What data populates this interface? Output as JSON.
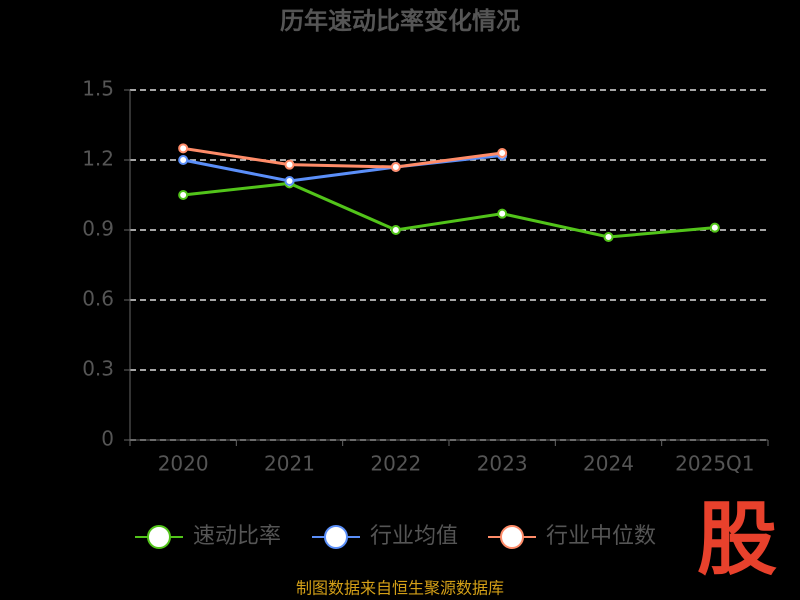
{
  "chart_data": {
    "type": "line",
    "title": "历年速动比率变化情况",
    "categories": [
      "2020",
      "2021",
      "2022",
      "2023",
      "2024",
      "2025Q1"
    ],
    "series": [
      {
        "name": "速动比率",
        "color": "#52c41a",
        "values": [
          1.05,
          1.1,
          0.9,
          0.97,
          0.87,
          0.91
        ]
      },
      {
        "name": "行业均值",
        "color": "#5b8ff9",
        "values": [
          1.2,
          1.11,
          1.17,
          1.22,
          null,
          null
        ]
      },
      {
        "name": "行业中位数",
        "color": "#ff8c69",
        "values": [
          1.25,
          1.18,
          1.17,
          1.23,
          null,
          null
        ]
      }
    ],
    "ylim": [
      0,
      1.5
    ],
    "yticks": [
      0,
      0.3,
      0.6,
      0.9,
      1.2,
      1.5
    ],
    "grid": true,
    "legend": "bottom",
    "source": "制图数据来自恒生聚源数据库",
    "logo": "股"
  }
}
